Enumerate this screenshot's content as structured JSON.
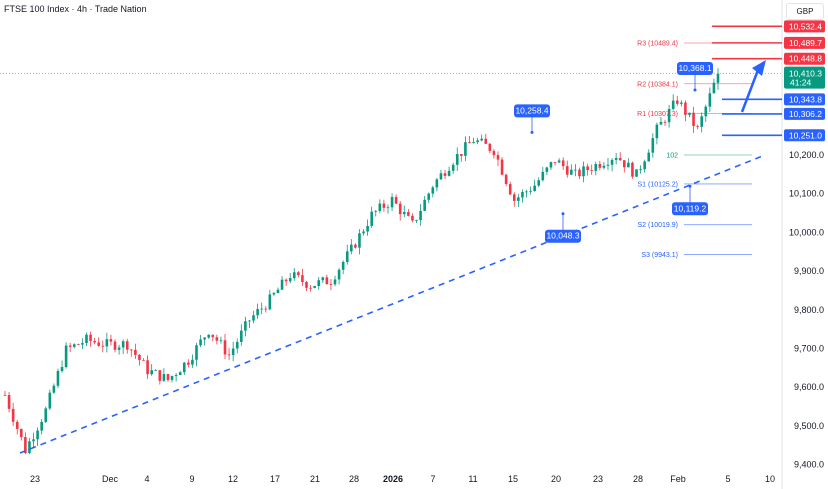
{
  "header": {
    "title": "FTSE 100 Index · 4h · Trade Nation",
    "currency": "GBP"
  },
  "chart_data": {
    "type": "candlestick",
    "title": "FTSE 100 Index · 4h · Trade Nation",
    "ylim": [
      9400,
      10540
    ],
    "y_ticks": [
      9400,
      9500,
      9600,
      9700,
      9800,
      9900,
      10000,
      10100,
      10200,
      10300,
      10400,
      10500
    ],
    "y_tick_labels": [
      "9,400.0",
      "9,500.0",
      "9,600.0",
      "9,700.0",
      "9,800.0",
      "9,900.0",
      "10,000.0",
      "10,100.0",
      "10,200.0",
      "10,300.0",
      "10,400.0",
      "10,500.0"
    ],
    "x_ticks": [
      {
        "label": "23"
      },
      {
        "label": "Dec"
      },
      {
        "label": "4"
      },
      {
        "label": "9"
      },
      {
        "label": "12"
      },
      {
        "label": "17"
      },
      {
        "label": "21"
      },
      {
        "label": "28"
      },
      {
        "label": "2026",
        "bold": true
      },
      {
        "label": "7"
      },
      {
        "label": "11"
      },
      {
        "label": "15"
      },
      {
        "label": "20"
      },
      {
        "label": "23"
      },
      {
        "label": "28"
      },
      {
        "label": "Feb"
      },
      {
        "label": "5"
      },
      {
        "label": "10"
      }
    ],
    "approx_close_path": [
      9580,
      9438,
      9540,
      9696,
      9722,
      9710,
      9712,
      9644,
      9619,
      9670,
      9748,
      9683,
      9774,
      9825,
      9890,
      9864,
      9877,
      9955,
      10045,
      10084,
      10019,
      10122,
      10187,
      10239,
      10213,
      10084,
      10122,
      10187,
      10148,
      10174,
      10200,
      10148,
      10265,
      10342,
      10265,
      10410
    ],
    "last_price": {
      "value": "10,410.3",
      "countdown": "41:24",
      "color": "#089981"
    },
    "pivots": [
      {
        "label": "R3 (10489.4)",
        "value": 10489.4,
        "color": "#f23645"
      },
      {
        "label": "R2 (10384.1)",
        "value": 10384.1,
        "color": "#f23645"
      },
      {
        "label": "R1 (10307.3)",
        "value": 10307.3,
        "color": "#f23645"
      },
      {
        "label": "102",
        "value": 10200,
        "color": "#089981"
      },
      {
        "label": "S1 (10125.2)",
        "value": 10125.2,
        "color": "#2962ff"
      },
      {
        "label": "S2 (10019.9)",
        "value": 10019.9,
        "color": "#2962ff"
      },
      {
        "label": "S3 (9943.1)",
        "value": 9943.1,
        "color": "#2962ff"
      }
    ],
    "levels": [
      {
        "label": "10,532.4",
        "value": 10532.4,
        "color": "#f23645"
      },
      {
        "label": "10,489.7",
        "value": 10489.7,
        "color": "#f23645"
      },
      {
        "label": "10,448.8",
        "value": 10448.8,
        "color": "#f23645"
      },
      {
        "label": "10,343.8",
        "value": 10343.8,
        "color": "#2962ff"
      },
      {
        "label": "10,306.2",
        "value": 10306.2,
        "color": "#2962ff"
      },
      {
        "label": "10,251.0",
        "value": 10251.0,
        "color": "#2962ff"
      }
    ],
    "annotations": [
      {
        "label": "10,258.4",
        "value": 10258.4,
        "type": "high"
      },
      {
        "label": "10,048.3",
        "value": 10048.3,
        "type": "low"
      },
      {
        "label": "10,368.1",
        "value": 10368.1,
        "type": "high"
      },
      {
        "label": "10,119.2",
        "value": 10119.2,
        "type": "low"
      }
    ],
    "trendline": {
      "style": "dashed",
      "color": "#2962ff",
      "from": 9430,
      "to": 10200
    },
    "colors": {
      "up": "#089981",
      "down": "#f23645",
      "accent": "#2962ff"
    }
  }
}
